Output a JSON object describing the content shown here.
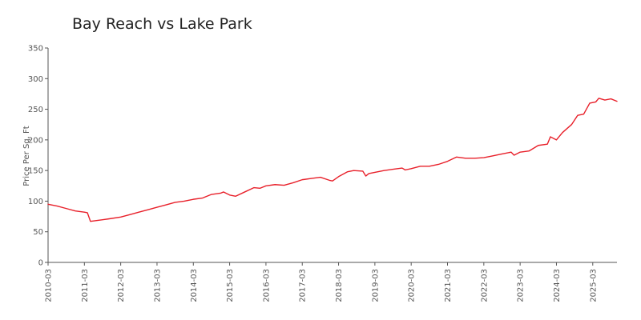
{
  "chart_data": {
    "type": "line",
    "title": "Bay Reach vs Lake Park",
    "xlabel": "",
    "ylabel": "Price Per Sq. Ft",
    "ylim": [
      0,
      350
    ],
    "yticks": [
      0,
      50,
      100,
      150,
      200,
      250,
      300,
      350
    ],
    "xticks": [
      "2010-03",
      "2011-03",
      "2012-03",
      "2013-03",
      "2014-03",
      "2015-03",
      "2016-03",
      "2017-03",
      "2018-03",
      "2019-03",
      "2020-03",
      "2021-03",
      "2022-03",
      "2023-03",
      "2024-03",
      "2025-03"
    ],
    "xrange": [
      "2010-03",
      "2025-11"
    ],
    "grid": false,
    "legend": "none",
    "series": [
      {
        "color": "#e8202a",
        "points": [
          [
            "2010-03",
            95
          ],
          [
            "2010-06",
            92
          ],
          [
            "2010-09",
            88
          ],
          [
            "2010-12",
            84
          ],
          [
            "2011-03",
            82
          ],
          [
            "2011-04",
            81
          ],
          [
            "2011-05",
            67
          ],
          [
            "2011-08",
            69
          ],
          [
            "2011-11",
            71
          ],
          [
            "2012-03",
            74
          ],
          [
            "2012-06",
            78
          ],
          [
            "2012-09",
            82
          ],
          [
            "2012-12",
            86
          ],
          [
            "2013-03",
            90
          ],
          [
            "2013-06",
            94
          ],
          [
            "2013-09",
            98
          ],
          [
            "2013-12",
            100
          ],
          [
            "2014-03",
            103
          ],
          [
            "2014-06",
            105
          ],
          [
            "2014-09",
            111
          ],
          [
            "2014-12",
            113
          ],
          [
            "2015-01",
            115
          ],
          [
            "2015-03",
            110
          ],
          [
            "2015-05",
            108
          ],
          [
            "2015-08",
            115
          ],
          [
            "2015-11",
            122
          ],
          [
            "2016-01",
            121
          ],
          [
            "2016-03",
            125
          ],
          [
            "2016-06",
            127
          ],
          [
            "2016-09",
            126
          ],
          [
            "2016-12",
            130
          ],
          [
            "2017-03",
            135
          ],
          [
            "2017-06",
            137
          ],
          [
            "2017-09",
            139
          ],
          [
            "2017-12",
            134
          ],
          [
            "2018-01",
            133
          ],
          [
            "2018-03",
            140
          ],
          [
            "2018-06",
            148
          ],
          [
            "2018-08",
            150
          ],
          [
            "2018-11",
            149
          ],
          [
            "2018-12",
            141
          ],
          [
            "2019-01",
            145
          ],
          [
            "2019-03",
            147
          ],
          [
            "2019-06",
            150
          ],
          [
            "2019-09",
            152
          ],
          [
            "2019-12",
            154
          ],
          [
            "2020-01",
            151
          ],
          [
            "2020-03",
            153
          ],
          [
            "2020-06",
            157
          ],
          [
            "2020-09",
            157
          ],
          [
            "2020-12",
            160
          ],
          [
            "2021-03",
            165
          ],
          [
            "2021-06",
            172
          ],
          [
            "2021-09",
            170
          ],
          [
            "2021-12",
            170
          ],
          [
            "2022-03",
            171
          ],
          [
            "2022-06",
            174
          ],
          [
            "2022-09",
            177
          ],
          [
            "2022-12",
            180
          ],
          [
            "2023-01",
            175
          ],
          [
            "2023-03",
            180
          ],
          [
            "2023-06",
            182
          ],
          [
            "2023-09",
            191
          ],
          [
            "2023-12",
            193
          ],
          [
            "2024-01",
            205
          ],
          [
            "2024-03",
            200
          ],
          [
            "2024-05",
            212
          ],
          [
            "2024-08",
            225
          ],
          [
            "2024-10",
            240
          ],
          [
            "2024-12",
            242
          ],
          [
            "2025-02",
            260
          ],
          [
            "2025-04",
            262
          ],
          [
            "2025-05",
            268
          ],
          [
            "2025-07",
            265
          ],
          [
            "2025-09",
            267
          ],
          [
            "2025-11",
            263
          ]
        ]
      }
    ]
  }
}
